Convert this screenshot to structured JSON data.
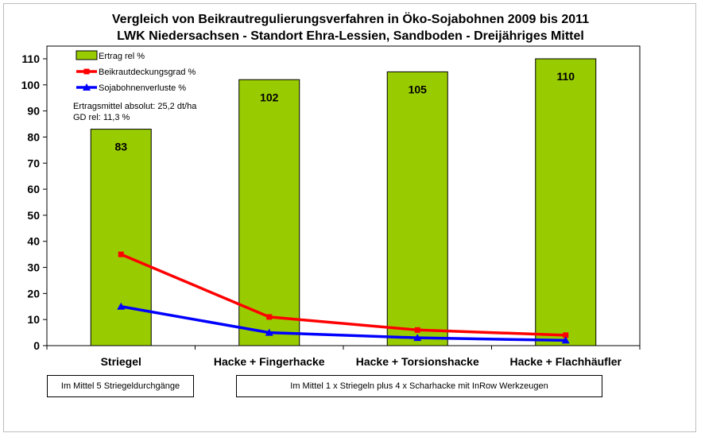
{
  "chart_data": {
    "type": "bar",
    "title": "Vergleich von Beikrautregulierungsverfahren in Öko-Sojabohnen 2009 bis 2011",
    "subtitle": "LWK Niedersachsen - Standort Ehra-Lessien, Sandboden - Dreijähriges Mittel",
    "categories": [
      "Striegel",
      "Hacke + Fingerhacke",
      "Hacke + Torsionshacke",
      "Hacke + Flachhäufler"
    ],
    "ylim": [
      0,
      110
    ],
    "yticks": [
      0,
      10,
      20,
      30,
      40,
      50,
      60,
      70,
      80,
      90,
      100,
      110
    ],
    "grid": false,
    "legend_position": "top-left",
    "series": [
      {
        "name": "Ertrag rel %",
        "kind": "bar",
        "color": "#99cc00",
        "values": [
          83,
          102,
          105,
          110
        ],
        "labels": [
          "83",
          "102",
          "105",
          "110"
        ]
      },
      {
        "name": "Beikrautdeckungsgrad %",
        "kind": "line",
        "marker": "square",
        "color": "#ff0000",
        "values": [
          35,
          11,
          6,
          4
        ]
      },
      {
        "name": "Sojabohnenverluste %",
        "kind": "line",
        "marker": "triangle",
        "color": "#0000ff",
        "values": [
          15,
          5,
          3,
          2
        ]
      }
    ],
    "annotations": [
      "Ertragsmittel absolut: 25,2 dt/ha",
      "GD rel: 11,3 %"
    ]
  },
  "notes": {
    "left": "Im Mittel 5 Striegeldurchgänge",
    "right": "Im Mittel 1 x Striegeln plus 4 x Scharhacke mit InRow Werkzeugen"
  }
}
